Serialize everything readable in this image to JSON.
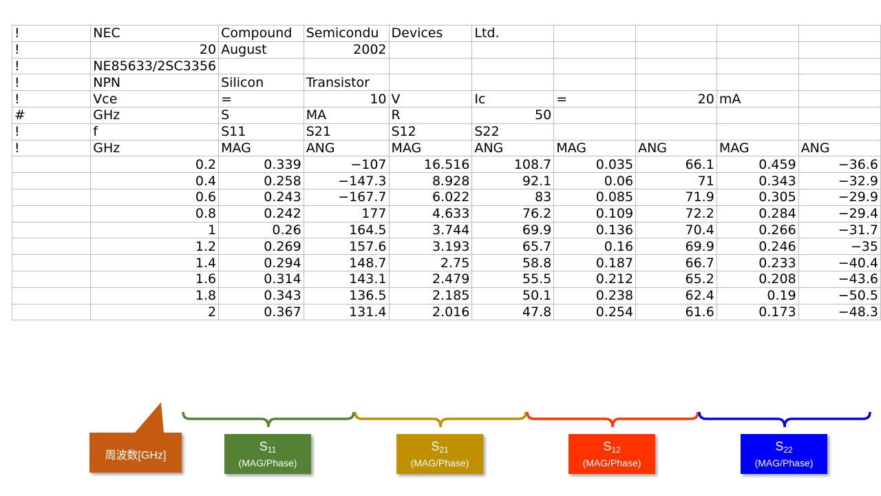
{
  "sheet": {
    "rows": [
      [
        "!",
        "NEC",
        "Compound",
        "Semicondu",
        "Devices",
        "Ltd.",
        "",
        "",
        "",
        ""
      ],
      [
        "!",
        "20",
        "August",
        "2002",
        "",
        "",
        "",
        "",
        "",
        ""
      ],
      [
        "!",
        "NE85633/2SC3356",
        "",
        "",
        "",
        "",
        "",
        "",
        "",
        ""
      ],
      [
        "!",
        "NPN",
        "Silicon",
        "Transistor",
        "",
        "",
        "",
        "",
        "",
        ""
      ],
      [
        "!",
        "Vce",
        "=",
        "10",
        "V",
        "Ic",
        "=",
        "20",
        "mA",
        ""
      ],
      [
        "#",
        "GHz",
        "S",
        "MA",
        "R",
        "50",
        "",
        "",
        "",
        ""
      ],
      [
        "!",
        "f",
        "S11",
        "S21",
        "S12",
        "S22",
        "",
        "",
        "",
        ""
      ],
      [
        "!",
        "GHz",
        "MAG",
        "ANG",
        "MAG",
        "ANG",
        "MAG",
        "ANG",
        "MAG",
        "ANG"
      ],
      [
        "",
        "0.2",
        "0.339",
        "−107",
        "16.516",
        "108.7",
        "0.035",
        "66.1",
        "0.459",
        "−36.6"
      ],
      [
        "",
        "0.4",
        "0.258",
        "−147.3",
        "8.928",
        "92.1",
        "0.06",
        "71",
        "0.343",
        "−32.9"
      ],
      [
        "",
        "0.6",
        "0.243",
        "−167.7",
        "6.022",
        "83",
        "0.085",
        "71.9",
        "0.305",
        "−29.9"
      ],
      [
        "",
        "0.8",
        "0.242",
        "177",
        "4.633",
        "76.2",
        "0.109",
        "72.2",
        "0.284",
        "−29.4"
      ],
      [
        "",
        "1",
        "0.26",
        "164.5",
        "3.744",
        "69.9",
        "0.136",
        "70.4",
        "0.266",
        "−31.7"
      ],
      [
        "",
        "1.2",
        "0.269",
        "157.6",
        "3.193",
        "65.7",
        "0.16",
        "69.9",
        "0.246",
        "−35"
      ],
      [
        "",
        "1.4",
        "0.294",
        "148.7",
        "2.75",
        "58.8",
        "0.187",
        "66.7",
        "0.233",
        "−40.4"
      ],
      [
        "",
        "1.6",
        "0.314",
        "143.1",
        "2.479",
        "55.5",
        "0.212",
        "65.2",
        "0.208",
        "−43.6"
      ],
      [
        "",
        "1.8",
        "0.343",
        "136.5",
        "2.185",
        "50.1",
        "0.238",
        "62.4",
        "0.19",
        "−50.5"
      ],
      [
        "",
        "2",
        "0.367",
        "131.4",
        "2.016",
        "47.8",
        "0.254",
        "61.6",
        "0.173",
        "−48.3"
      ]
    ],
    "align": [
      [
        "txt",
        "txt",
        "txt",
        "txt",
        "txt",
        "txt",
        "txt",
        "txt",
        "txt",
        "txt"
      ],
      [
        "txt",
        "num",
        "txt",
        "num",
        "txt",
        "txt",
        "txt",
        "txt",
        "txt",
        "txt"
      ],
      [
        "txt",
        "txt",
        "txt",
        "txt",
        "txt",
        "txt",
        "txt",
        "txt",
        "txt",
        "txt"
      ],
      [
        "txt",
        "txt",
        "txt",
        "txt",
        "txt",
        "txt",
        "txt",
        "txt",
        "txt",
        "txt"
      ],
      [
        "txt",
        "txt",
        "txt",
        "num",
        "txt",
        "txt",
        "txt",
        "num",
        "txt",
        "txt"
      ],
      [
        "txt",
        "txt",
        "txt",
        "txt",
        "txt",
        "num",
        "txt",
        "txt",
        "txt",
        "txt"
      ],
      [
        "txt",
        "txt",
        "txt",
        "txt",
        "txt",
        "txt",
        "txt",
        "txt",
        "txt",
        "txt"
      ],
      [
        "txt",
        "txt",
        "txt",
        "txt",
        "txt",
        "txt",
        "txt",
        "txt",
        "txt",
        "txt"
      ],
      [
        "num",
        "num",
        "num",
        "num",
        "num",
        "num",
        "num",
        "num",
        "num",
        "num"
      ]
    ],
    "spill": [
      [
        2,
        1
      ]
    ]
  },
  "labels": {
    "freq": "周波数[GHz]",
    "s11": {
      "letter": "S",
      "sub": "11",
      "detail": "(MAG/Phase)"
    },
    "s21": {
      "letter": "S",
      "sub": "21",
      "detail": "(MAG/Phase)"
    },
    "s12": {
      "letter": "S",
      "sub": "12",
      "detail": "(MAG/Phase)"
    },
    "s22": {
      "letter": "S",
      "sub": "22",
      "detail": "(MAG/Phase)"
    }
  },
  "colors": {
    "freq": "#c55a11",
    "s11": "#548235",
    "s21": "#bf9000",
    "s12": "#ff3300",
    "s22": "#0000ff"
  },
  "icons": [
    "callout-arrow-icon",
    "curly-brace-icon"
  ]
}
